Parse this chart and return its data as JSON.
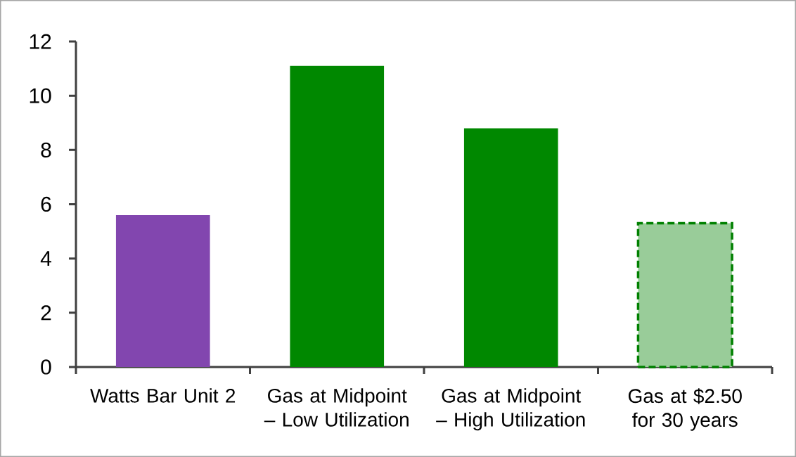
{
  "chart_data": {
    "type": "bar",
    "categories": [
      "Watts Bar Unit 2",
      "Gas at Midpoint – Low Utilization",
      "Gas at Midpoint – High Utilization",
      "Gas at $2.50 for 30 years"
    ],
    "series": [
      {
        "color": "#8246af",
        "values": [
          5.6,
          null,
          null,
          null
        ]
      },
      {
        "color": "#008800",
        "values": [
          null,
          11.1,
          8.8,
          null
        ]
      },
      {
        "color": "#99cc99",
        "line_style": "dashed",
        "values": [
          null,
          null,
          null,
          5.3
        ]
      }
    ],
    "ylim": [
      0,
      12
    ],
    "yticks": [
      0,
      2,
      4,
      6,
      8,
      10,
      12
    ]
  }
}
